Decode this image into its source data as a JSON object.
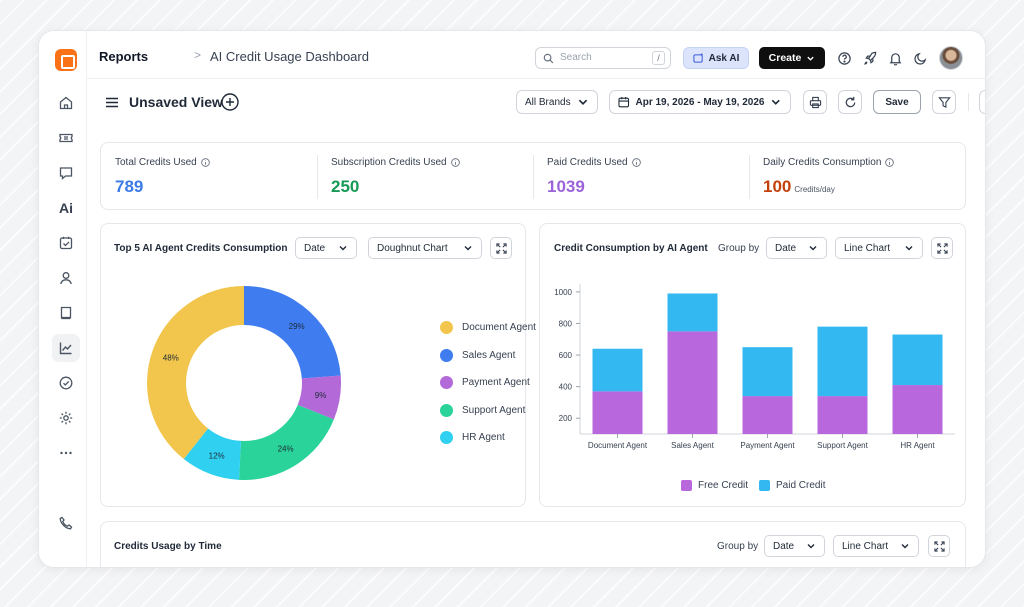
{
  "header": {
    "breadcrumb_root": "Reports",
    "breadcrumb_separator": ">",
    "page_title": "AI Credit Usage Dashboard",
    "search_placeholder": "Search",
    "search_shortcut": "/",
    "ask_ai_label": "Ask AI",
    "create_label": "Create"
  },
  "sidebar": {
    "items": [
      {
        "icon": "home-icon"
      },
      {
        "icon": "ticket-icon"
      },
      {
        "icon": "chat-icon"
      },
      {
        "icon": "ai-icon",
        "text": "Ai"
      },
      {
        "icon": "task-icon"
      },
      {
        "icon": "user-icon"
      },
      {
        "icon": "book-icon"
      },
      {
        "icon": "chart-icon",
        "active": true
      },
      {
        "icon": "check-circle-icon"
      },
      {
        "icon": "settings-icon"
      },
      {
        "icon": "more-icon"
      },
      {
        "icon": "phone-icon"
      }
    ]
  },
  "toolbar": {
    "view_title": "Unsaved View",
    "brand_filter": "All Brands",
    "date_range": "Apr 19, 2026 - May 19, 2026",
    "save_label": "Save"
  },
  "stats": [
    {
      "label": "Total Credits Used",
      "value": "789",
      "unit": "",
      "color": "#3b7be6"
    },
    {
      "label": "Subscription Credits Used",
      "value": "250",
      "unit": "",
      "color": "#169a55"
    },
    {
      "label": "Paid Credits Used",
      "value": "1039",
      "unit": "",
      "color": "#9b63d9"
    },
    {
      "label": "Daily Credits Consumption",
      "value": "100",
      "unit": "Credits/day",
      "color": "#c2410c"
    }
  ],
  "doughnut_panel": {
    "title": "Top 5 AI Agent Credits Consumption",
    "group_value": "Date",
    "chart_type": "Doughnut Chart"
  },
  "bar_panel": {
    "title": "Credit Consumption by AI Agent",
    "group_label": "Group by",
    "group_value": "Date",
    "chart_type": "Line Chart"
  },
  "bottom_panel": {
    "title": "Credits Usage by Time",
    "group_label": "Group by",
    "group_value": "Date",
    "chart_type": "Line Chart"
  },
  "chart_data": [
    {
      "type": "pie",
      "title": "Top 5 AI Agent Credits Consumption",
      "categories": [
        "Document Agent",
        "Sales Agent",
        "Payment Agent",
        "Support Agent",
        "HR Agent"
      ],
      "values": [
        48,
        29,
        9,
        24,
        12
      ],
      "value_labels": [
        "48%",
        "29%",
        "9%",
        "24%",
        "12%"
      ],
      "colors": [
        "#f2c64d",
        "#3e7cf0",
        "#b36ad8",
        "#2ad39a",
        "#2fd0f0"
      ],
      "legend_placement": "right",
      "donut": true
    },
    {
      "type": "bar",
      "stacked": true,
      "title": "Credit Consumption by AI Agent",
      "categories": [
        "Document Agent",
        "Sales Agent",
        "Payment Agent",
        "Support Agent",
        "HR Agent"
      ],
      "series": [
        {
          "name": "Free Credit",
          "values": [
            370,
            750,
            340,
            340,
            410
          ],
          "color": "#b867dc"
        },
        {
          "name": "Paid Credit",
          "values": [
            270,
            240,
            310,
            440,
            320
          ],
          "color": "#34b8f2"
        }
      ],
      "y_ticks": [
        200,
        400,
        600,
        800,
        1000
      ],
      "ylim": [
        100,
        1050
      ],
      "grid": false,
      "legend_placement": "bottom"
    }
  ]
}
